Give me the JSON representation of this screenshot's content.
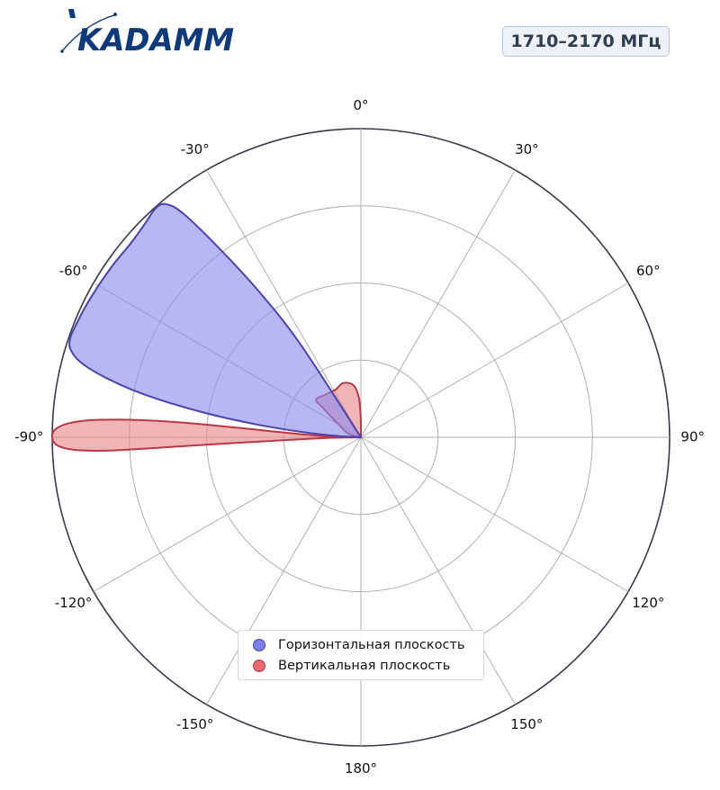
{
  "header": {
    "logo_text": "KADAMM",
    "frequency_badge": "1710–2170 МГц"
  },
  "colors": {
    "horizontal_fill": "#8a8aef",
    "horizontal_stroke": "#4b44b0",
    "vertical_fill": "#e8878d",
    "vertical_stroke": "#b83843",
    "logo_color": "#0d3a7c",
    "grid": "#b0b0b0",
    "outer_ring": "#3a3a48"
  },
  "chart_data": {
    "type": "polar",
    "angle_ticks": [
      {
        "deg": 0,
        "label": "0°"
      },
      {
        "deg": 30,
        "label": "30°"
      },
      {
        "deg": 60,
        "label": "60°"
      },
      {
        "deg": 90,
        "label": "90°"
      },
      {
        "deg": 120,
        "label": "120°"
      },
      {
        "deg": 150,
        "label": "150°"
      },
      {
        "deg": 180,
        "label": "180°"
      },
      {
        "deg": -150,
        "label": "-150°"
      },
      {
        "deg": -120,
        "label": "-120°"
      },
      {
        "deg": -90,
        "label": "-90°"
      },
      {
        "deg": -60,
        "label": "-60°"
      },
      {
        "deg": -30,
        "label": "-30°"
      }
    ],
    "radial_range": [
      0,
      1
    ],
    "radial_grid": [
      0.25,
      0.5,
      0.75,
      1.0
    ],
    "legend_position": "bottom-center",
    "series": [
      {
        "name": "Горизонтальная плоскость",
        "points": [
          {
            "theta": -33,
            "r": 0.36
          },
          {
            "theta": -35,
            "r": 0.58
          },
          {
            "theta": -37,
            "r": 0.78
          },
          {
            "theta": -38.5,
            "r": 0.93
          },
          {
            "theta": -40,
            "r": 0.987
          },
          {
            "theta": -42,
            "r": 0.996
          },
          {
            "theta": -45,
            "r": 0.985
          },
          {
            "theta": -50,
            "r": 0.975
          },
          {
            "theta": -55,
            "r": 0.978
          },
          {
            "theta": -60,
            "r": 0.982
          },
          {
            "theta": -65,
            "r": 0.988
          },
          {
            "theta": -69,
            "r": 0.993
          },
          {
            "theta": -71,
            "r": 0.995
          },
          {
            "theta": -73,
            "r": 0.985
          },
          {
            "theta": -75,
            "r": 0.94
          },
          {
            "theta": -77,
            "r": 0.84
          },
          {
            "theta": -79,
            "r": 0.7
          },
          {
            "theta": -81,
            "r": 0.52
          },
          {
            "theta": -83,
            "r": 0.34
          },
          {
            "theta": -85,
            "r": 0.18
          },
          {
            "theta": -87,
            "r": 0.07
          }
        ]
      },
      {
        "name": "Вертикальная плоскость",
        "points": [
          {
            "theta": -90,
            "r": 0.0
          },
          {
            "theta": -88.5,
            "r": 0.1
          },
          {
            "theta": -87,
            "r": 0.2
          },
          {
            "theta": -86,
            "r": 0.31
          },
          {
            "theta": -85.5,
            "r": 0.42
          },
          {
            "theta": -85.3,
            "r": 0.54
          },
          {
            "theta": -85.4,
            "r": 0.66
          },
          {
            "theta": -85.8,
            "r": 0.78
          },
          {
            "theta": -86.4,
            "r": 0.88
          },
          {
            "theta": -87.3,
            "r": 0.95
          },
          {
            "theta": -88.5,
            "r": 0.99
          },
          {
            "theta": -90,
            "r": 1.0
          },
          {
            "theta": -91.5,
            "r": 0.985
          },
          {
            "theta": -92.5,
            "r": 0.93
          },
          {
            "theta": -93,
            "r": 0.83
          },
          {
            "theta": -93,
            "r": 0.7
          },
          {
            "theta": -92.8,
            "r": 0.55
          },
          {
            "theta": -92.5,
            "r": 0.38
          },
          {
            "theta": -92,
            "r": 0.22
          },
          {
            "theta": -91,
            "r": 0.1
          },
          {
            "theta": -90,
            "r": 0.0
          }
        ],
        "back_lobe": [
          {
            "theta": -90,
            "r": 0.0
          },
          {
            "theta": -75,
            "r": 0.04
          },
          {
            "theta": -62,
            "r": 0.075
          },
          {
            "theta": -55,
            "r": 0.12
          },
          {
            "theta": -52,
            "r": 0.16
          },
          {
            "theta": -50,
            "r": 0.19
          },
          {
            "theta": -40,
            "r": 0.18
          },
          {
            "theta": -28,
            "r": 0.175
          },
          {
            "theta": -18,
            "r": 0.185
          },
          {
            "theta": -8,
            "r": 0.17
          },
          {
            "theta": -3,
            "r": 0.13
          },
          {
            "theta": -1,
            "r": 0.08
          },
          {
            "theta": 0,
            "r": 0.04
          },
          {
            "theta": 0,
            "r": 0.0
          }
        ]
      }
    ]
  }
}
